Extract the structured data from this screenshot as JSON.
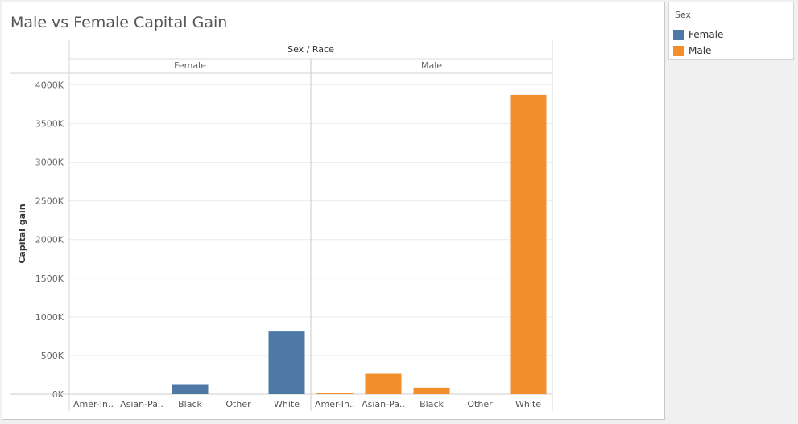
{
  "chart_data": {
    "type": "bar",
    "title": "Male vs Female Capital Gain",
    "column_header": "Sex / Race",
    "ylabel": "Capital gain",
    "ylim": [
      0,
      4150000
    ],
    "yticks": [
      0,
      500000,
      1000000,
      1500000,
      2000000,
      2500000,
      3000000,
      3500000,
      4000000
    ],
    "ytick_labels": [
      "0K",
      "500K",
      "1000K",
      "1500K",
      "2000K",
      "2500K",
      "3000K",
      "3500K",
      "4000K"
    ],
    "grid": true,
    "legend_position": "top-right",
    "panels": [
      {
        "name": "Female",
        "color": "#4e79a7",
        "categories": [
          "Amer-In..",
          "Asian-Pa..",
          "Black",
          "Other",
          "White"
        ],
        "values": [
          0,
          0,
          130000,
          0,
          810000
        ]
      },
      {
        "name": "Male",
        "color": "#f28e2b",
        "categories": [
          "Amer-In..",
          "Asian-Pa..",
          "Black",
          "Other",
          "White"
        ],
        "values": [
          20000,
          265000,
          85000,
          0,
          3870000
        ]
      }
    ]
  },
  "legend": {
    "title": "Sex",
    "items": [
      {
        "label": "Female",
        "color": "#4e79a7"
      },
      {
        "label": "Male",
        "color": "#f28e2b"
      }
    ]
  }
}
